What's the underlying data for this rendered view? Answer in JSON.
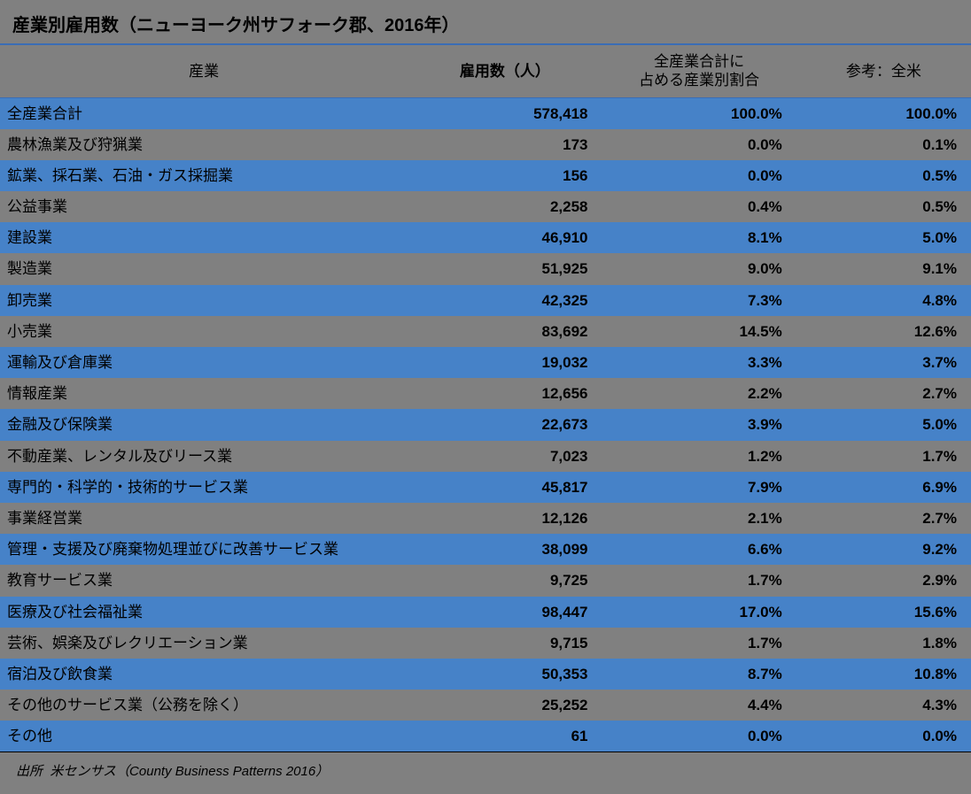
{
  "title": "産業別雇用数（ニューヨーク州サフォーク郡、2016年）",
  "source_label": "出所",
  "source_value": "米センサス（County Business Patterns 2016）",
  "table": {
    "columns": [
      {
        "label": "産業",
        "align": "center",
        "bold": false
      },
      {
        "label": "雇用数（人）",
        "align": "center",
        "bold": true
      },
      {
        "label": "全産業合計に\n占める産業別割合",
        "align": "center",
        "bold": false
      },
      {
        "label": "参考：全米",
        "align": "center",
        "bold": false
      }
    ],
    "col_widths_pct": [
      42,
      20,
      20,
      18
    ],
    "row_colors": {
      "odd": "#4682c8",
      "even": "#808080"
    },
    "header_border_color": "#3a6db5",
    "title_border_color": "#3a6db5",
    "background_color": "#808080",
    "font_family": "Meiryo",
    "rows": [
      {
        "cells": [
          "全産業合計",
          "578,418",
          "100.0%",
          "100.0%"
        ]
      },
      {
        "cells": [
          "農林漁業及び狩猟業",
          "173",
          "0.0%",
          "0.1%"
        ]
      },
      {
        "cells": [
          "鉱業、採石業、石油・ガス採掘業",
          "156",
          "0.0%",
          "0.5%"
        ]
      },
      {
        "cells": [
          "公益事業",
          "2,258",
          "0.4%",
          "0.5%"
        ]
      },
      {
        "cells": [
          "建設業",
          "46,910",
          "8.1%",
          "5.0%"
        ]
      },
      {
        "cells": [
          "製造業",
          "51,925",
          "9.0%",
          "9.1%"
        ]
      },
      {
        "cells": [
          "卸売業",
          "42,325",
          "7.3%",
          "4.8%"
        ]
      },
      {
        "cells": [
          "小売業",
          "83,692",
          "14.5%",
          "12.6%"
        ]
      },
      {
        "cells": [
          "運輸及び倉庫業",
          "19,032",
          "3.3%",
          "3.7%"
        ]
      },
      {
        "cells": [
          "情報産業",
          "12,656",
          "2.2%",
          "2.7%"
        ]
      },
      {
        "cells": [
          "金融及び保険業",
          "22,673",
          "3.9%",
          "5.0%"
        ]
      },
      {
        "cells": [
          "不動産業、レンタル及びリース業",
          "7,023",
          "1.2%",
          "1.7%"
        ]
      },
      {
        "cells": [
          "専門的・科学的・技術的サービス業",
          "45,817",
          "7.9%",
          "6.9%"
        ]
      },
      {
        "cells": [
          "事業経営業",
          "12,126",
          "2.1%",
          "2.7%"
        ]
      },
      {
        "cells": [
          "管理・支援及び廃棄物処理並びに改善サービス業",
          "38,099",
          "6.6%",
          "9.2%"
        ]
      },
      {
        "cells": [
          "教育サービス業",
          "9,725",
          "1.7%",
          "2.9%"
        ]
      },
      {
        "cells": [
          "医療及び社会福祉業",
          "98,447",
          "17.0%",
          "15.6%"
        ]
      },
      {
        "cells": [
          "芸術、娯楽及びレクリエーション業",
          "9,715",
          "1.7%",
          "1.8%"
        ]
      },
      {
        "cells": [
          "宿泊及び飲食業",
          "50,353",
          "8.7%",
          "10.8%"
        ]
      },
      {
        "cells": [
          "その他のサービス業（公務を除く）",
          "25,252",
          "4.4%",
          "4.3%"
        ]
      },
      {
        "cells": [
          "その他",
          "61",
          "0.0%",
          "0.0%"
        ]
      }
    ]
  }
}
